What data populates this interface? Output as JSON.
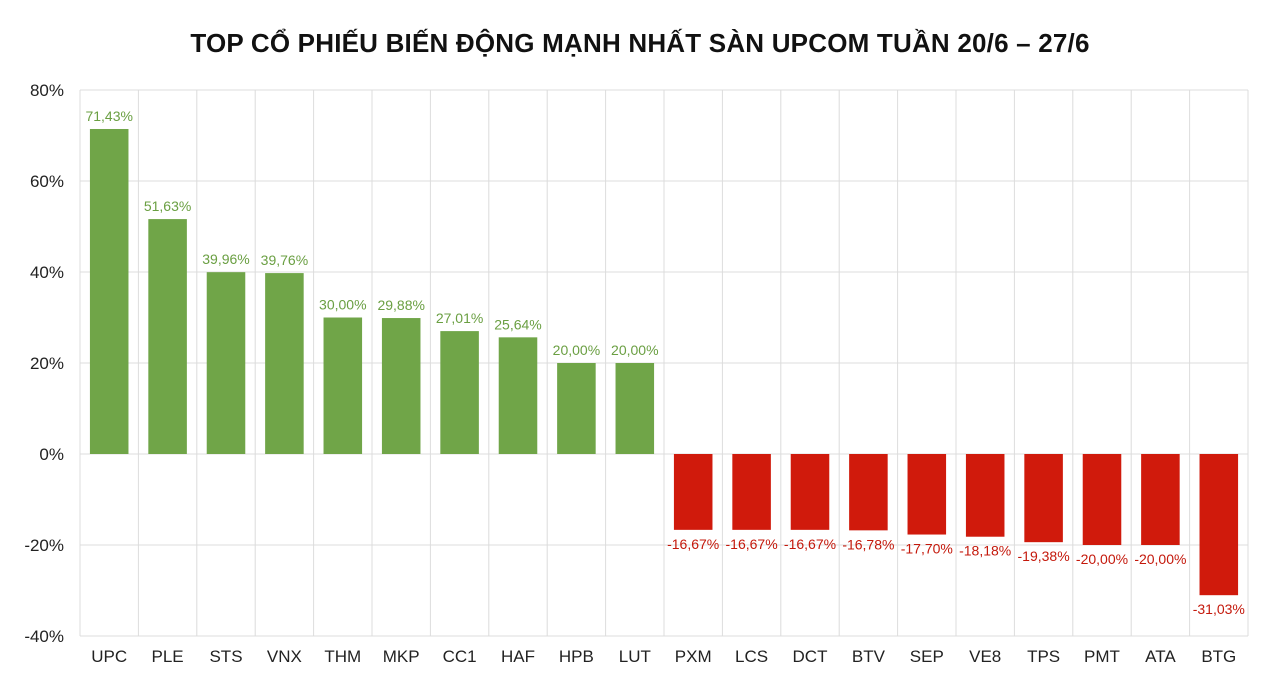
{
  "chart_data": {
    "type": "bar",
    "title": "TOP CỔ PHIẾU BIẾN ĐỘNG MẠNH NHẤT SÀN UPCOM TUẦN 20/6 – 27/6",
    "xlabel": "",
    "ylabel": "",
    "ylim": [
      -40,
      80
    ],
    "y_ticks": [
      "80%",
      "60%",
      "40%",
      "20%",
      "0%",
      "-20%",
      "-40%"
    ],
    "y_tick_values": [
      80,
      60,
      40,
      20,
      0,
      -20,
      -40
    ],
    "grid": true,
    "categories": [
      "UPC",
      "PLE",
      "STS",
      "VNX",
      "THM",
      "MKP",
      "CC1",
      "HAF",
      "HPB",
      "LUT",
      "PXM",
      "LCS",
      "DCT",
      "BTV",
      "SEP",
      "VE8",
      "TPS",
      "PMT",
      "ATA",
      "BTG"
    ],
    "values": [
      71.43,
      51.63,
      39.96,
      39.76,
      30.0,
      29.88,
      27.01,
      25.64,
      20.0,
      20.0,
      -16.67,
      -16.67,
      -16.67,
      -16.78,
      -17.7,
      -18.18,
      -19.38,
      -20.0,
      -20.0,
      -31.03
    ],
    "data_labels": [
      "71,43%",
      "51,63%",
      "39,96%",
      "39,76%",
      "30,00%",
      "29,88%",
      "27,01%",
      "25,64%",
      "20,00%",
      "20,00%",
      "-16,67%",
      "-16,67%",
      "-16,67%",
      "-16,78%",
      "-17,70%",
      "-18,18%",
      "-19,38%",
      "-20,00%",
      "-20,00%",
      "-31,03%"
    ],
    "colors": {
      "positive": "#70a548",
      "negative": "#d01a0c",
      "positive_label": "#6a9f42",
      "negative_label": "#c4180b",
      "grid": "#dcdcdc"
    }
  }
}
